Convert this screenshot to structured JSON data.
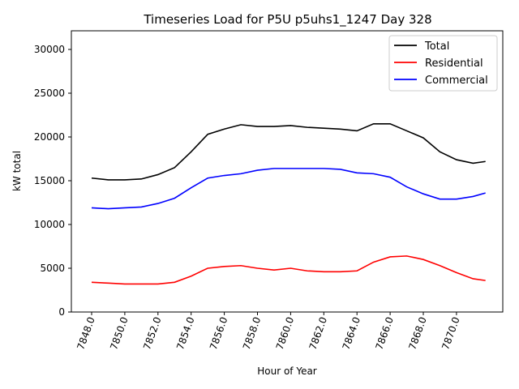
{
  "chart_data": {
    "type": "line",
    "title": "Timeseries Load for P5U p5uhs1_1247  Day 328",
    "xlabel": "Hour of Year",
    "ylabel": "kW total",
    "ylim": [
      0,
      32000
    ],
    "xlim": [
      7846.8,
      7872.4
    ],
    "xticks": [
      7848,
      7850,
      7852,
      7854,
      7856,
      7858,
      7860,
      7862,
      7864,
      7866,
      7868,
      7870
    ],
    "xtick_labels": [
      "7848.0",
      "7850.0",
      "7852.0",
      "7854.0",
      "7856.0",
      "7858.0",
      "7860.0",
      "7862.0",
      "7864.0",
      "7866.0",
      "7868.0",
      "7870.0"
    ],
    "yticks": [
      0,
      5000,
      10000,
      15000,
      20000,
      25000,
      30000
    ],
    "ytick_labels": [
      "0",
      "5000",
      "10000",
      "15000",
      "20000",
      "25000",
      "30000"
    ],
    "legend_position": "top-right",
    "x": [
      7848,
      7849,
      7850,
      7851,
      7852,
      7853,
      7854,
      7855,
      7856,
      7857,
      7858,
      7859,
      7860,
      7861,
      7862,
      7863,
      7864,
      7865,
      7866,
      7867,
      7868,
      7869,
      7870,
      7871,
      7871.75
    ],
    "series": [
      {
        "name": "Total",
        "color": "#000000",
        "values": [
          15300,
          15100,
          15100,
          15200,
          15700,
          16500,
          18300,
          20300,
          20900,
          21400,
          21200,
          21200,
          21300,
          21100,
          21000,
          20900,
          20700,
          21500,
          21500,
          20700,
          19900,
          18300,
          17400,
          17000,
          17200
        ]
      },
      {
        "name": "Residential",
        "color": "#ff0000",
        "values": [
          3400,
          3300,
          3200,
          3200,
          3200,
          3400,
          4100,
          5000,
          5200,
          5300,
          5000,
          4800,
          5000,
          4700,
          4600,
          4600,
          4700,
          5700,
          6300,
          6400,
          6000,
          5300,
          4500,
          3800,
          3600
        ]
      },
      {
        "name": "Commercial",
        "color": "#0000ff",
        "values": [
          11900,
          11800,
          11900,
          12000,
          12400,
          13000,
          14200,
          15300,
          15600,
          15800,
          16200,
          16400,
          16400,
          16400,
          16400,
          16300,
          15900,
          15800,
          15400,
          14300,
          13500,
          12900,
          12900,
          13200,
          13600
        ]
      }
    ]
  }
}
